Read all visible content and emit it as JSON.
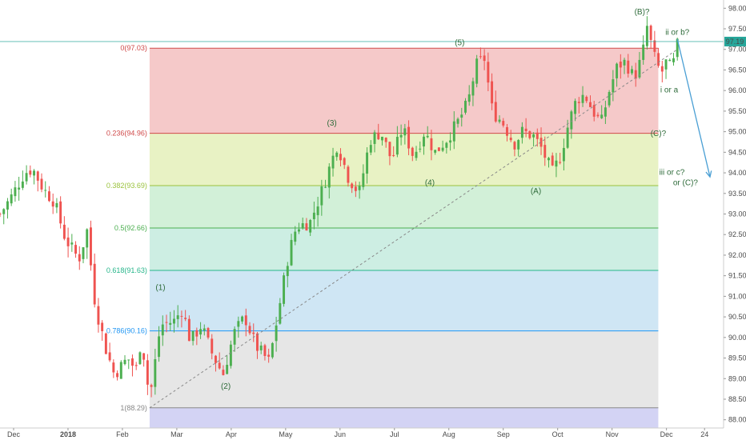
{
  "colors": {
    "up": "#26a69a",
    "down": "#ef5350",
    "up_body": "#4caf50",
    "wave_label": "#2e6b3a",
    "projection": "#4a9fd4",
    "price_line": "#26a69a",
    "fib_zones": [
      "#f5c9c9",
      "#e8f2c4",
      "#d2f0d8",
      "#cdeee3",
      "#cfe6f4",
      "#e6e6e6",
      "#d3d3f4"
    ],
    "fib_lines": [
      "#d04a4a",
      "#d04a4a",
      "#9ac23c",
      "#4caf50",
      "#26b58a",
      "#2196f3",
      "#888888"
    ]
  },
  "chart_data": {
    "type": "candlestick",
    "ylim": [
      87.8,
      98.2
    ],
    "x_range_months": [
      0,
      13.3
    ],
    "y_ticks": [
      "98.00",
      "97.50",
      "97.00",
      "96.50",
      "96.00",
      "95.50",
      "95.00",
      "94.50",
      "94.00",
      "93.50",
      "93.00",
      "92.50",
      "92.00",
      "91.50",
      "91.00",
      "90.50",
      "90.00",
      "89.50",
      "89.00",
      "88.50",
      "88.00"
    ],
    "x_ticks": [
      {
        "label": "Dec",
        "t": 0.25
      },
      {
        "label": "2018",
        "t": 1.25
      },
      {
        "label": "Feb",
        "t": 2.25
      },
      {
        "label": "Mar",
        "t": 3.25
      },
      {
        "label": "Apr",
        "t": 4.25
      },
      {
        "label": "May",
        "t": 5.25
      },
      {
        "label": "Jun",
        "t": 6.25
      },
      {
        "label": "Jul",
        "t": 7.25
      },
      {
        "label": "Aug",
        "t": 8.25
      },
      {
        "label": "Sep",
        "t": 9.25
      },
      {
        "label": "Oct",
        "t": 10.25
      },
      {
        "label": "Nov",
        "t": 11.25
      },
      {
        "label": "Dec",
        "t": 12.25
      },
      {
        "label": "24",
        "t": 12.95
      }
    ],
    "last_price": 97.19,
    "last_price_label": "97.19",
    "fib_levels": [
      {
        "label": "0(97.03)",
        "price": 97.03
      },
      {
        "label": "0.236(94.96)",
        "price": 94.96
      },
      {
        "label": "0.382(93.69)",
        "price": 93.69
      },
      {
        "label": "0.5(92.66)",
        "price": 92.66
      },
      {
        "label": "0.618(91.63)",
        "price": 91.63
      },
      {
        "label": "0.786(90.16)",
        "price": 90.16
      },
      {
        "label": "1(88.29)",
        "price": 88.29
      }
    ],
    "fib_zone_bottom": 87.8,
    "fib_span_t": [
      2.75,
      12.1
    ],
    "anchor_points": [
      [
        0.0,
        93.0
      ],
      [
        0.2,
        93.4
      ],
      [
        0.45,
        94.0
      ],
      [
        0.6,
        94.1
      ],
      [
        0.8,
        93.6
      ],
      [
        1.0,
        93.3
      ],
      [
        1.2,
        92.4
      ],
      [
        1.45,
        91.9
      ],
      [
        1.6,
        92.6
      ],
      [
        1.75,
        90.8
      ],
      [
        1.95,
        89.7
      ],
      [
        2.1,
        89.1
      ],
      [
        2.35,
        89.5
      ],
      [
        2.5,
        89.2
      ],
      [
        2.6,
        90.0
      ],
      [
        2.75,
        88.5
      ],
      [
        2.95,
        90.3
      ],
      [
        3.2,
        90.4
      ],
      [
        3.35,
        90.7
      ],
      [
        3.5,
        89.9
      ],
      [
        3.7,
        90.3
      ],
      [
        3.9,
        89.6
      ],
      [
        4.1,
        89.1
      ],
      [
        4.3,
        90.1
      ],
      [
        4.5,
        90.5
      ],
      [
        4.7,
        89.8
      ],
      [
        4.95,
        89.4
      ],
      [
        5.1,
        90.5
      ],
      [
        5.3,
        92.0
      ],
      [
        5.45,
        92.7
      ],
      [
        5.7,
        92.8
      ],
      [
        5.9,
        93.5
      ],
      [
        6.05,
        94.1
      ],
      [
        6.2,
        94.7
      ],
      [
        6.4,
        93.9
      ],
      [
        6.6,
        93.5
      ],
      [
        6.8,
        94.8
      ],
      [
        7.0,
        95.0
      ],
      [
        7.2,
        94.3
      ],
      [
        7.4,
        95.1
      ],
      [
        7.6,
        94.4
      ],
      [
        7.8,
        95.0
      ],
      [
        8.0,
        94.5
      ],
      [
        8.2,
        94.8
      ],
      [
        8.4,
        95.2
      ],
      [
        8.6,
        95.7
      ],
      [
        8.75,
        96.6
      ],
      [
        8.9,
        96.8
      ],
      [
        9.05,
        95.5
      ],
      [
        9.25,
        95.2
      ],
      [
        9.45,
        94.7
      ],
      [
        9.6,
        95.0
      ],
      [
        9.8,
        94.9
      ],
      [
        9.95,
        94.6
      ],
      [
        10.15,
        94.0
      ],
      [
        10.3,
        94.4
      ],
      [
        10.45,
        95.2
      ],
      [
        10.6,
        95.8
      ],
      [
        10.75,
        95.9
      ],
      [
        10.9,
        95.5
      ],
      [
        11.05,
        95.2
      ],
      [
        11.2,
        96.0
      ],
      [
        11.35,
        96.6
      ],
      [
        11.5,
        96.7
      ],
      [
        11.65,
        96.3
      ],
      [
        11.8,
        96.8
      ],
      [
        11.9,
        97.6
      ],
      [
        12.0,
        96.9
      ],
      [
        12.15,
        96.4
      ],
      [
        12.25,
        96.7
      ],
      [
        12.35,
        96.5
      ],
      [
        12.45,
        97.1
      ]
    ],
    "candle_count": 180,
    "trendline": {
      "from": [
        2.75,
        88.29
      ],
      "to": [
        12.45,
        97.0
      ]
    },
    "projection": {
      "from": [
        12.45,
        97.25
      ],
      "to": [
        13.05,
        93.9
      ]
    },
    "wave_labels": [
      {
        "text": "(1)",
        "t": 2.95,
        "price": 91.15
      },
      {
        "text": "(2)",
        "t": 4.15,
        "price": 88.75
      },
      {
        "text": "(3)",
        "t": 6.1,
        "price": 95.15
      },
      {
        "text": "(4)",
        "t": 7.9,
        "price": 93.7
      },
      {
        "text": "(5)",
        "t": 8.45,
        "price": 97.1
      },
      {
        "text": "(A)",
        "t": 9.85,
        "price": 93.5
      },
      {
        "text": "(B)?",
        "t": 11.8,
        "price": 97.85
      },
      {
        "text": "ii or b?",
        "t": 12.45,
        "price": 97.35
      },
      {
        "text": "i or a",
        "t": 12.3,
        "price": 95.95
      },
      {
        "text": "(C)?",
        "t": 12.1,
        "price": 94.9
      },
      {
        "text": "iii or c?",
        "t": 12.35,
        "price": 93.95
      },
      {
        "text": "or (C)?",
        "t": 12.6,
        "price": 93.7
      }
    ]
  }
}
